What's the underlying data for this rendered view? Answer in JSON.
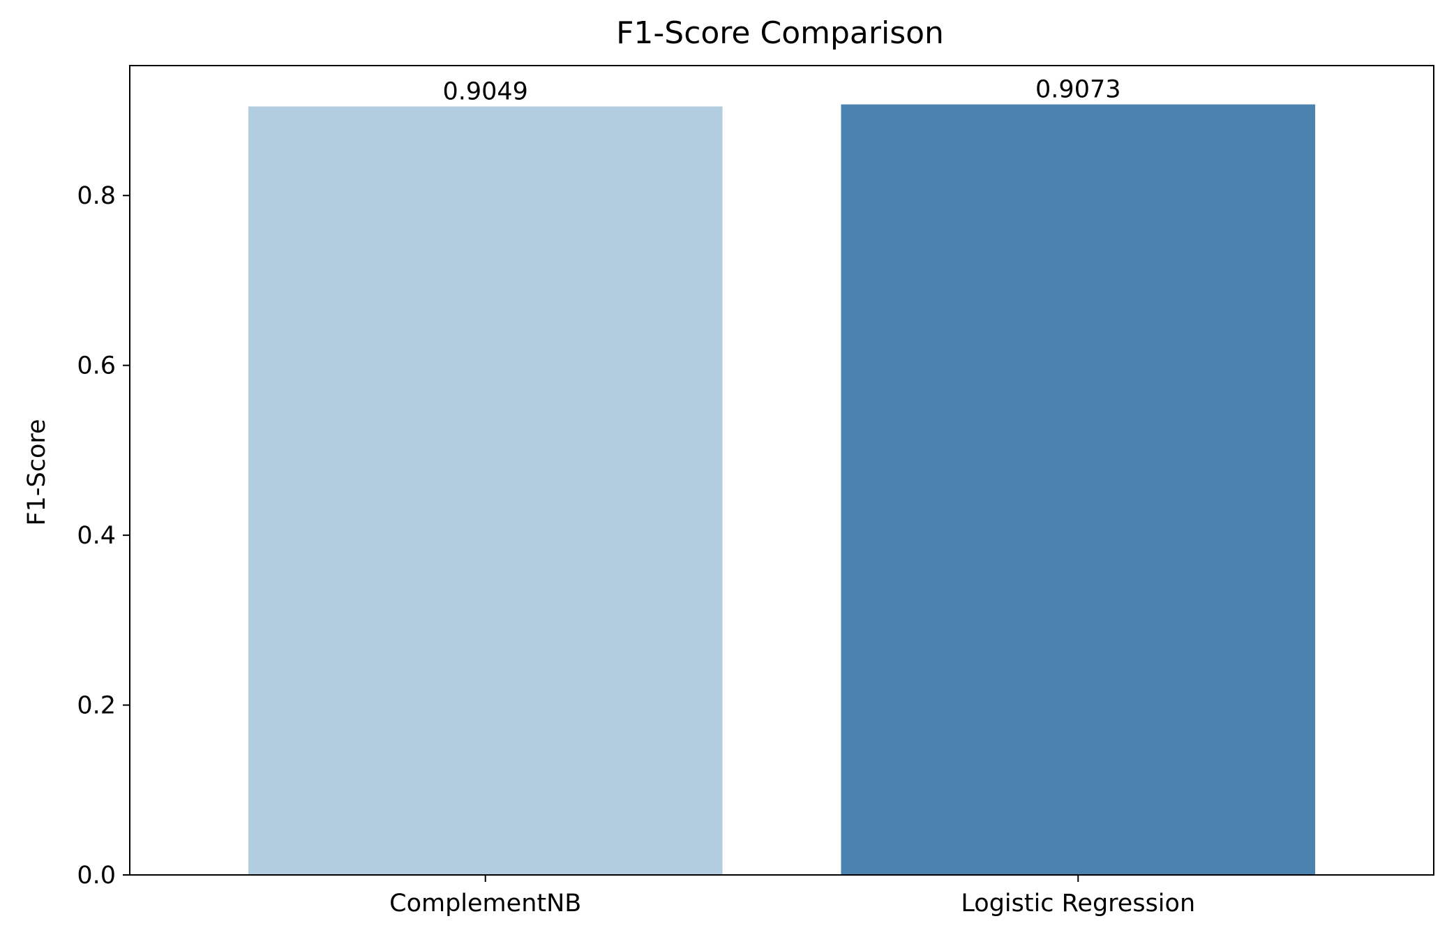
{
  "chart_data": {
    "type": "bar",
    "title": "F1-Score Comparison",
    "xlabel": "",
    "ylabel": "F1-Score",
    "categories": [
      "ComplementNB",
      "Logistic Regression"
    ],
    "values": [
      0.9049,
      0.9073
    ],
    "data_labels": [
      "0.9049",
      "0.9073"
    ],
    "bar_colors": [
      "#b3cde0",
      "#4a83b0"
    ],
    "ylim": [
      0,
      0.953
    ],
    "yticks": [
      0.0,
      0.2,
      0.4,
      0.6,
      0.8
    ],
    "ytick_labels": [
      "0.0",
      "0.2",
      "0.4",
      "0.6",
      "0.8"
    ],
    "grid": false,
    "legend": "none"
  }
}
